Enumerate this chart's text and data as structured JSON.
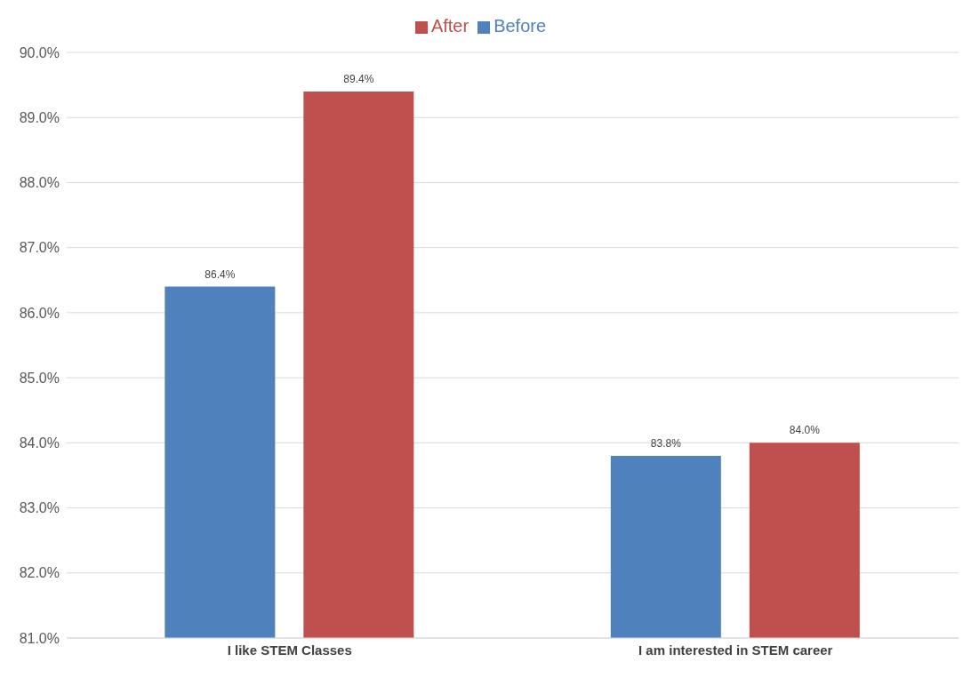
{
  "chart_data": {
    "type": "bar",
    "categories": [
      "I like STEM Classes",
      "I am interested in STEM career"
    ],
    "series": [
      {
        "name": "Before",
        "color": "#4f81bd",
        "values": [
          86.4,
          83.8
        ],
        "value_labels": [
          "86.4%",
          "83.8%"
        ]
      },
      {
        "name": "After",
        "color": "#c0504d",
        "values": [
          89.4,
          84.0
        ],
        "value_labels": [
          "89.4%",
          "84.0%"
        ]
      }
    ],
    "ylim": [
      81,
      90
    ],
    "yticks": [
      {
        "value": 81,
        "label": "81.0%"
      },
      {
        "value": 82,
        "label": "82.0%"
      },
      {
        "value": 83,
        "label": "83.0%"
      },
      {
        "value": 84,
        "label": "84.0%"
      },
      {
        "value": 85,
        "label": "85.0%"
      },
      {
        "value": 86,
        "label": "86.0%"
      },
      {
        "value": 87,
        "label": "87.0%"
      },
      {
        "value": 88,
        "label": "88.0%"
      },
      {
        "value": 89,
        "label": "89.0%"
      },
      {
        "value": 90,
        "label": "90.0%"
      }
    ],
    "grid": "y",
    "legend": "top"
  }
}
